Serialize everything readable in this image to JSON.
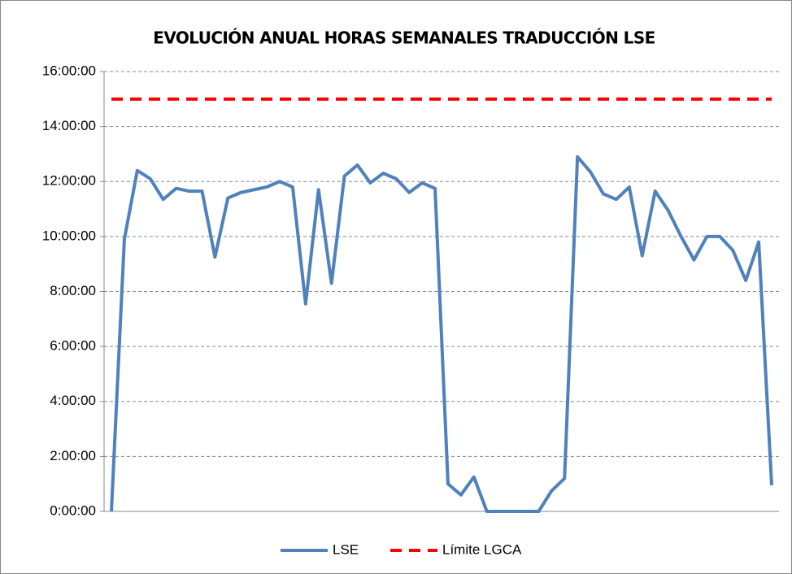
{
  "chart_data": {
    "type": "line",
    "title": "EVOLUCIÓN ANUAL HORAS SEMANALES TRADUCCIÓN LSE",
    "ylim": [
      0,
      16
    ],
    "yticks": [
      {
        "value": 0,
        "label": "0:00:00"
      },
      {
        "value": 2,
        "label": "2:00:00"
      },
      {
        "value": 4,
        "label": "4:00:00"
      },
      {
        "value": 6,
        "label": "6:00:00"
      },
      {
        "value": 8,
        "label": "8:00:00"
      },
      {
        "value": 10,
        "label": "10:00:00"
      },
      {
        "value": 12,
        "label": "12:00:00"
      },
      {
        "value": 14,
        "label": "14:00:00"
      },
      {
        "value": 16,
        "label": "16:00:00"
      }
    ],
    "grid": true,
    "legend": "bottom",
    "series": [
      {
        "name": "LSE",
        "color": "#4f81bd",
        "dashed": false,
        "values": [
          0,
          9.9,
          12.4,
          12.1,
          11.35,
          11.75,
          11.65,
          11.65,
          9.25,
          11.4,
          11.6,
          11.7,
          11.8,
          12.0,
          11.8,
          7.55,
          11.7,
          8.3,
          12.2,
          12.6,
          11.95,
          12.3,
          12.1,
          11.6,
          11.95,
          11.75,
          1.0,
          0.6,
          1.25,
          0,
          0,
          0,
          0,
          0,
          0.75,
          1.2,
          12.9,
          12.35,
          11.55,
          11.35,
          11.8,
          9.3,
          11.65,
          10.95,
          10.0,
          9.15,
          10.0,
          10.0,
          9.5,
          8.4,
          9.8,
          0.95
        ]
      },
      {
        "name": "Límite LGCA",
        "color": "#ff0000",
        "dashed": true,
        "values": [
          15,
          15,
          15,
          15,
          15,
          15,
          15,
          15,
          15,
          15,
          15,
          15,
          15,
          15,
          15,
          15,
          15,
          15,
          15,
          15,
          15,
          15,
          15,
          15,
          15,
          15,
          15,
          15,
          15,
          15,
          15,
          15,
          15,
          15,
          15,
          15,
          15,
          15,
          15,
          15,
          15,
          15,
          15,
          15,
          15,
          15,
          15,
          15,
          15,
          15,
          15,
          15
        ]
      }
    ]
  }
}
